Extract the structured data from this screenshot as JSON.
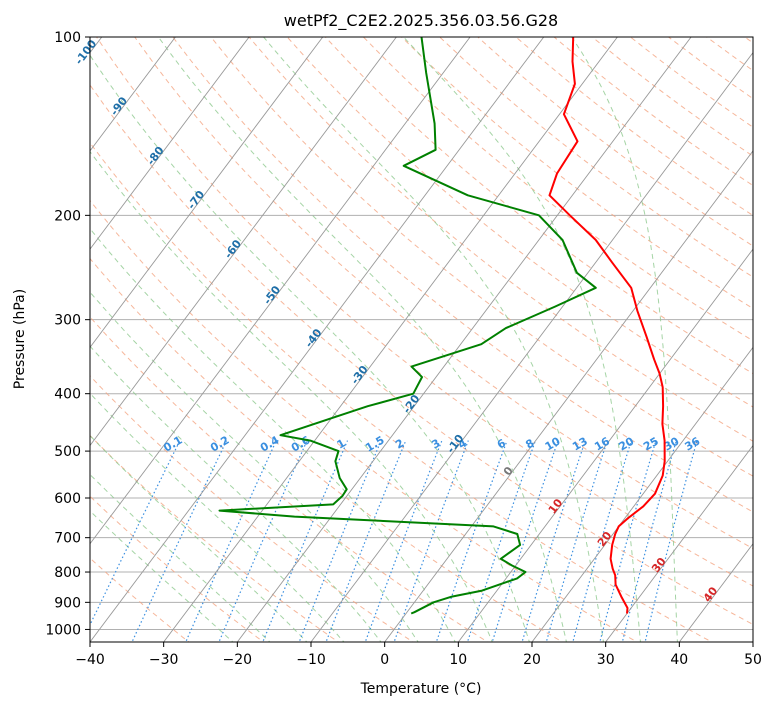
{
  "chart_data": {
    "type": "line",
    "title": "wetPf2_C2E2.2025.356.03.56.G28",
    "xlabel": "Temperature (°C)",
    "ylabel": "Pressure (hPa)",
    "xlim": [
      -40,
      50
    ],
    "ylim": [
      1050,
      100
    ],
    "y_scale": "log",
    "x_ticks": [
      "−40",
      "−30",
      "−20",
      "−10",
      "0",
      "10",
      "20",
      "30",
      "40",
      "50"
    ],
    "y_ticks": [
      1000,
      900,
      800,
      700,
      600,
      500,
      400,
      300,
      200,
      100
    ],
    "skew": "skew-T log-p diagram",
    "grid": true,
    "colors": {
      "temperature": "#ff0000",
      "dewpoint": "#008000",
      "isotherm": "#999999",
      "dry_adiabat": "#f4a582",
      "moist_adiabat": "#8fc98f",
      "mixing_ratio": "#3a8fe0",
      "isotherm_label_cold": "#1f6fa8",
      "isotherm_label_warm": "#d62728"
    },
    "series": [
      {
        "key": "temperature",
        "points": [
          [
            30.0,
            940
          ],
          [
            29.5,
            920
          ],
          [
            27.5,
            880
          ],
          [
            25.5,
            840
          ],
          [
            24.5,
            810
          ],
          [
            23.5,
            790
          ],
          [
            22.2,
            760
          ],
          [
            21.0,
            720
          ],
          [
            20.3,
            690
          ],
          [
            20.0,
            670
          ],
          [
            20.4,
            650
          ],
          [
            21.3,
            620
          ],
          [
            21.6,
            590
          ],
          [
            20.8,
            550
          ],
          [
            19.6,
            520
          ],
          [
            17.5,
            480
          ],
          [
            15.5,
            450
          ],
          [
            13.8,
            420
          ],
          [
            11.8,
            390
          ],
          [
            10.0,
            370
          ],
          [
            7.8,
            350
          ],
          [
            4.4,
            320
          ],
          [
            0.6,
            290
          ],
          [
            -2.6,
            265
          ],
          [
            -7.8,
            240
          ],
          [
            -12.3,
            220
          ],
          [
            -18.3,
            200
          ],
          [
            -23.1,
            185
          ],
          [
            -24.3,
            170
          ],
          [
            -24.8,
            150
          ],
          [
            -29.4,
            135
          ],
          [
            -31.0,
            120
          ],
          [
            -33.6,
            110
          ],
          [
            -36.0,
            100
          ]
        ]
      },
      {
        "key": "dewpoint",
        "points": [
          [
            0.7,
            940
          ],
          [
            1.0,
            935
          ],
          [
            2.6,
            900
          ],
          [
            4.5,
            880
          ],
          [
            8.0,
            860
          ],
          [
            11.5,
            820
          ],
          [
            12.0,
            800
          ],
          [
            9.5,
            780
          ],
          [
            7.3,
            760
          ],
          [
            8.5,
            720
          ],
          [
            7.0,
            690
          ],
          [
            3.0,
            670
          ],
          [
            -25.0,
            645
          ],
          [
            -35.8,
            630
          ],
          [
            -21.0,
            615
          ],
          [
            -20.6,
            595
          ],
          [
            -20.7,
            580
          ],
          [
            -22.8,
            555
          ],
          [
            -25.1,
            520
          ],
          [
            -25.7,
            500
          ],
          [
            -30.6,
            480
          ],
          [
            -35.2,
            470
          ],
          [
            -30.0,
            440
          ],
          [
            -26.3,
            420
          ],
          [
            -21.4,
            400
          ],
          [
            -21.9,
            375
          ],
          [
            -24.4,
            360
          ],
          [
            -17.2,
            330
          ],
          [
            -15.5,
            310
          ],
          [
            -11.0,
            285
          ],
          [
            -7.4,
            265
          ],
          [
            -11.5,
            250
          ],
          [
            -16.8,
            220
          ],
          [
            -22.5,
            200
          ],
          [
            -34.2,
            185
          ],
          [
            -45.9,
            165
          ],
          [
            -43.2,
            155
          ],
          [
            -46.0,
            140
          ],
          [
            -52.3,
            115
          ],
          [
            -56.6,
            100
          ]
        ]
      }
    ],
    "isotherm_labels": [
      {
        "text": "-100",
        "t": -100,
        "p": 107
      },
      {
        "text": "-90",
        "t": -90,
        "p": 132
      },
      {
        "text": "-80",
        "t": -80,
        "p": 160
      },
      {
        "text": "-70",
        "t": -70,
        "p": 190
      },
      {
        "text": "-60",
        "t": -60,
        "p": 230
      },
      {
        "text": "-50",
        "t": -50,
        "p": 275
      },
      {
        "text": "-40",
        "t": -40,
        "p": 325
      },
      {
        "text": "-30",
        "t": -30,
        "p": 375
      },
      {
        "text": "-20",
        "t": -20,
        "p": 420
      },
      {
        "text": "-10",
        "t": -10,
        "p": 490
      },
      {
        "text": "0",
        "t": 0,
        "p": 545
      },
      {
        "text": "10",
        "t": 10,
        "p": 625
      },
      {
        "text": "20",
        "t": 20,
        "p": 710
      },
      {
        "text": "30",
        "t": 30,
        "p": 785
      },
      {
        "text": "40",
        "t": 40,
        "p": 880
      }
    ],
    "mixing_ratio_labels": [
      "0.1",
      "0.2",
      "0.4",
      "0.6",
      "1",
      "1.5",
      "2",
      "3",
      "4",
      "6",
      "8",
      "10",
      "13",
      "16",
      "20",
      "25",
      "30",
      "36"
    ]
  }
}
